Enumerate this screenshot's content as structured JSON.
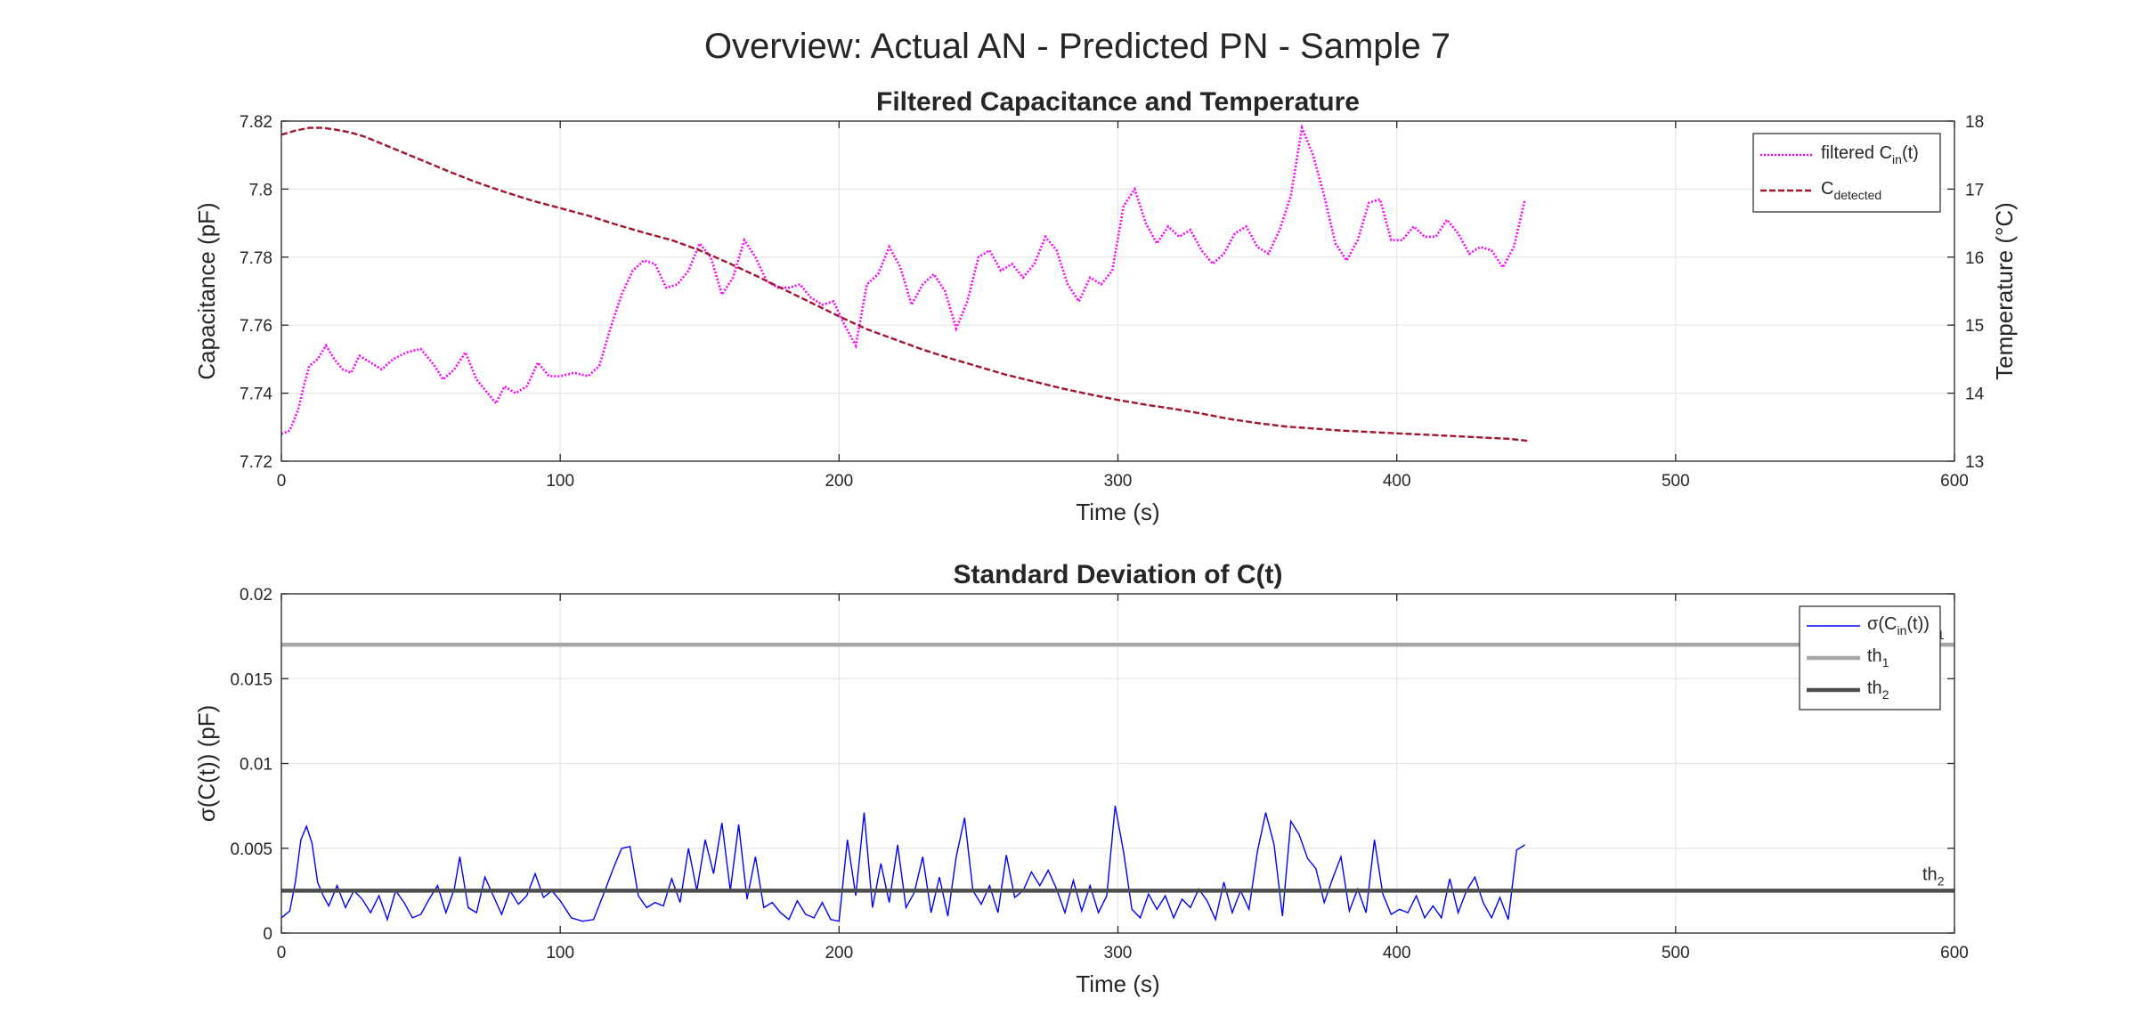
{
  "figure_title": "Overview: Actual AN - Predicted PN - Sample 7",
  "chart_data": [
    {
      "type": "line",
      "title": "Filtered Capacitance and Temperature",
      "xlabel": "Time (s)",
      "ylabel": "Capacitance (pF)",
      "ylabel_right": "Temperature (°C)",
      "xlim": [
        0,
        600
      ],
      "ylim": [
        7.72,
        7.82
      ],
      "ylim_right": [
        13,
        18
      ],
      "xticks": [
        "0",
        "100",
        "200",
        "300",
        "400",
        "500",
        "600"
      ],
      "yticks": [
        "7.72",
        "7.74",
        "7.76",
        "7.78",
        "7.8",
        "7.82"
      ],
      "yticks_right": [
        "13",
        "14",
        "15",
        "16",
        "17",
        "18"
      ],
      "grid": true,
      "legend_position": "top-right",
      "series": [
        {
          "name": "filtered C",
          "name_sub": "in",
          "name_suffix": "(t)",
          "axis": "left",
          "color": "#ff00ff",
          "style": "dotted",
          "x": [
            0,
            3,
            6,
            8,
            10,
            13,
            16,
            19,
            22,
            25,
            28,
            32,
            36,
            40,
            45,
            50,
            55,
            58,
            62,
            66,
            70,
            74,
            77,
            80,
            84,
            88,
            92,
            96,
            100,
            105,
            110,
            114,
            118,
            122,
            126,
            130,
            134,
            138,
            142,
            146,
            150,
            154,
            158,
            162,
            166,
            170,
            174,
            178,
            182,
            186,
            190,
            194,
            198,
            202,
            206,
            210,
            214,
            218,
            222,
            226,
            230,
            234,
            238,
            242,
            246,
            250,
            254,
            258,
            262,
            266,
            270,
            274,
            278,
            282,
            286,
            290,
            294,
            298,
            302,
            306,
            310,
            314,
            318,
            322,
            326,
            330,
            334,
            338,
            342,
            346,
            350,
            354,
            358,
            362,
            366,
            370,
            374,
            378,
            382,
            386,
            390,
            394,
            398,
            402,
            406,
            410,
            414,
            418,
            422,
            426,
            430,
            434,
            438,
            442,
            446
          ],
          "y": [
            7.728,
            7.729,
            7.735,
            7.742,
            7.748,
            7.75,
            7.754,
            7.75,
            7.747,
            7.746,
            7.751,
            7.749,
            7.747,
            7.75,
            7.752,
            7.753,
            7.748,
            7.744,
            7.747,
            7.752,
            7.744,
            7.74,
            7.737,
            7.742,
            7.74,
            7.742,
            7.749,
            7.745,
            7.745,
            7.746,
            7.745,
            7.748,
            7.759,
            7.769,
            7.776,
            7.779,
            7.778,
            7.771,
            7.772,
            7.776,
            7.784,
            7.78,
            7.769,
            7.774,
            7.785,
            7.78,
            7.773,
            7.771,
            7.771,
            7.772,
            7.768,
            7.766,
            7.767,
            7.76,
            7.754,
            7.772,
            7.775,
            7.783,
            7.777,
            7.766,
            7.772,
            7.775,
            7.77,
            7.759,
            7.767,
            7.78,
            7.782,
            7.776,
            7.778,
            7.774,
            7.778,
            7.786,
            7.782,
            7.772,
            7.767,
            7.774,
            7.772,
            7.776,
            7.795,
            7.8,
            7.79,
            7.784,
            7.789,
            7.786,
            7.788,
            7.782,
            7.778,
            7.781,
            7.787,
            7.789,
            7.783,
            7.781,
            7.788,
            7.798,
            7.818,
            7.81,
            7.798,
            7.784,
            7.779,
            7.785,
            7.796,
            7.797,
            7.785,
            7.785,
            7.789,
            7.786,
            7.786,
            7.791,
            7.787,
            7.781,
            7.783,
            7.782,
            7.777,
            7.783,
            7.797
          ]
        },
        {
          "name": "C",
          "name_sub": "detected",
          "name_suffix": "",
          "axis": "right",
          "color": "#a2142f",
          "style": "dashed",
          "x": [
            0,
            5,
            10,
            15,
            20,
            25,
            30,
            40,
            50,
            60,
            70,
            80,
            90,
            100,
            110,
            120,
            130,
            140,
            150,
            160,
            170,
            180,
            190,
            200,
            210,
            220,
            230,
            240,
            250,
            260,
            270,
            280,
            290,
            300,
            310,
            320,
            330,
            340,
            350,
            360,
            370,
            380,
            390,
            400,
            410,
            420,
            430,
            440,
            447
          ],
          "y": [
            17.8,
            17.86,
            17.9,
            17.9,
            17.87,
            17.83,
            17.77,
            17.6,
            17.43,
            17.26,
            17.1,
            16.96,
            16.83,
            16.72,
            16.61,
            16.48,
            16.36,
            16.25,
            16.1,
            15.92,
            15.73,
            15.53,
            15.33,
            15.13,
            14.94,
            14.79,
            14.64,
            14.51,
            14.39,
            14.27,
            14.17,
            14.07,
            13.98,
            13.9,
            13.83,
            13.77,
            13.7,
            13.62,
            13.56,
            13.51,
            13.48,
            13.45,
            13.43,
            13.41,
            13.39,
            13.37,
            13.35,
            13.33,
            13.3
          ]
        }
      ]
    },
    {
      "type": "line",
      "title": "Standard Deviation of C(t)",
      "xlabel": "Time (s)",
      "ylabel": "σ(C(t)) (pF)",
      "xlim": [
        0,
        600
      ],
      "ylim": [
        0,
        0.02
      ],
      "xticks": [
        "0",
        "100",
        "200",
        "300",
        "400",
        "500",
        "600"
      ],
      "yticks": [
        "0",
        "0.005",
        "0.01",
        "0.015",
        "0.02"
      ],
      "grid": true,
      "legend_position": "top-right",
      "series": [
        {
          "name": "σ(C",
          "name_sub": "in",
          "name_suffix": "(t))",
          "color": "#0000ff",
          "style": "solid",
          "x": [
            0,
            3,
            5,
            7,
            9,
            11,
            13,
            15,
            17,
            20,
            23,
            26,
            29,
            32,
            35,
            38,
            41,
            44,
            47,
            50,
            53,
            56,
            59,
            62,
            64,
            67,
            70,
            73,
            76,
            79,
            82,
            85,
            88,
            91,
            94,
            97,
            100,
            104,
            108,
            112,
            116,
            119,
            122,
            125,
            128,
            131,
            134,
            137,
            140,
            143,
            146,
            149,
            152,
            155,
            158,
            161,
            164,
            167,
            170,
            173,
            176,
            179,
            182,
            185,
            188,
            191,
            194,
            197,
            200,
            203,
            206,
            209,
            212,
            215,
            218,
            221,
            224,
            227,
            230,
            233,
            236,
            239,
            242,
            245,
            248,
            251,
            254,
            257,
            260,
            263,
            266,
            269,
            272,
            275,
            278,
            281,
            284,
            287,
            290,
            293,
            296,
            299,
            302,
            305,
            308,
            311,
            314,
            317,
            320,
            323,
            326,
            329,
            332,
            335,
            338,
            341,
            344,
            347,
            350,
            353,
            356,
            359,
            362,
            365,
            368,
            371,
            374,
            377,
            380,
            383,
            386,
            389,
            392,
            395,
            398,
            401,
            404,
            407,
            410,
            413,
            416,
            419,
            422,
            425,
            428,
            431,
            434,
            437,
            440,
            443,
            446
          ],
          "y": [
            0.0009,
            0.0013,
            0.003,
            0.0055,
            0.0063,
            0.0053,
            0.003,
            0.0022,
            0.0016,
            0.0028,
            0.0015,
            0.0025,
            0.002,
            0.0012,
            0.0022,
            0.0008,
            0.0025,
            0.0018,
            0.0009,
            0.0011,
            0.002,
            0.0028,
            0.0012,
            0.0026,
            0.0045,
            0.0015,
            0.0012,
            0.0033,
            0.0022,
            0.0011,
            0.0025,
            0.0017,
            0.0022,
            0.0035,
            0.0021,
            0.0025,
            0.0019,
            0.0009,
            0.0007,
            0.0008,
            0.0025,
            0.0038,
            0.005,
            0.0051,
            0.0022,
            0.0015,
            0.0018,
            0.0016,
            0.0032,
            0.0018,
            0.005,
            0.0025,
            0.0055,
            0.0035,
            0.0065,
            0.0025,
            0.0064,
            0.002,
            0.0045,
            0.0015,
            0.0018,
            0.0012,
            0.0008,
            0.0019,
            0.0011,
            0.0009,
            0.0018,
            0.0008,
            0.0007,
            0.0055,
            0.0022,
            0.0071,
            0.0015,
            0.0041,
            0.0018,
            0.0052,
            0.0015,
            0.0024,
            0.0045,
            0.0012,
            0.0033,
            0.001,
            0.0045,
            0.0068,
            0.0025,
            0.0017,
            0.0028,
            0.0012,
            0.0046,
            0.0021,
            0.0025,
            0.0036,
            0.0028,
            0.0037,
            0.0026,
            0.0012,
            0.0031,
            0.0013,
            0.0028,
            0.0012,
            0.0022,
            0.0075,
            0.0048,
            0.0014,
            0.0009,
            0.0023,
            0.0014,
            0.0022,
            0.0009,
            0.002,
            0.0015,
            0.0026,
            0.0019,
            0.0008,
            0.003,
            0.0012,
            0.0025,
            0.0014,
            0.0048,
            0.0071,
            0.0052,
            0.001,
            0.0066,
            0.0058,
            0.0044,
            0.0038,
            0.0018,
            0.0032,
            0.0045,
            0.0013,
            0.0026,
            0.0012,
            0.0055,
            0.0023,
            0.0011,
            0.0014,
            0.0012,
            0.0022,
            0.0009,
            0.0016,
            0.0009,
            0.0032,
            0.0012,
            0.0025,
            0.0033,
            0.0018,
            0.0009,
            0.0021,
            0.0008,
            0.0049,
            0.0052
          ]
        },
        {
          "name": "th",
          "name_sub": "1",
          "name_suffix": "",
          "color": "#a6a6a6",
          "style": "solid-thick",
          "x": [
            0,
            600
          ],
          "y": [
            0.017,
            0.017
          ],
          "annotation": "th1"
        },
        {
          "name": "th",
          "name_sub": "2",
          "name_suffix": "",
          "color": "#4d4d4d",
          "style": "solid-thick",
          "x": [
            0,
            600
          ],
          "y": [
            0.0025,
            0.0025
          ],
          "annotation": "th2"
        }
      ],
      "annotations": [
        {
          "text": "th",
          "sub": "1",
          "x": 600,
          "y": 0.017
        },
        {
          "text": "th",
          "sub": "2",
          "x": 600,
          "y": 0.0025
        }
      ]
    }
  ]
}
